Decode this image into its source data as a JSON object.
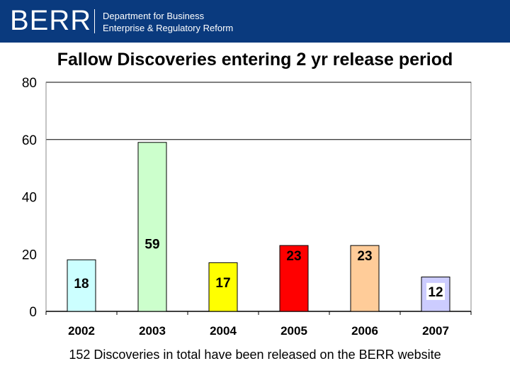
{
  "header": {
    "logo_text": "BERR",
    "dept_line1": "Department for Business",
    "dept_line2": "Enterprise & Regulatory Reform",
    "bg_color": "#0a3a7e"
  },
  "chart_data": {
    "type": "bar",
    "title": "Fallow Discoveries entering 2 yr release period",
    "categories": [
      "2002",
      "2003",
      "2004",
      "2005",
      "2006",
      "2007"
    ],
    "values": [
      18,
      59,
      17,
      23,
      23,
      12
    ],
    "colors": [
      "#ccffff",
      "#ccffcc",
      "#ffff00",
      "#ff0000",
      "#ffcc99",
      "#ccccff"
    ],
    "ylim": [
      0,
      80
    ],
    "yticks": [
      0,
      20,
      40,
      60,
      80
    ],
    "gridlines": [
      60,
      80
    ],
    "xlabel": "",
    "ylabel": ""
  },
  "footer": {
    "note": "152 Discoveries in total have been released on the BERR website"
  }
}
